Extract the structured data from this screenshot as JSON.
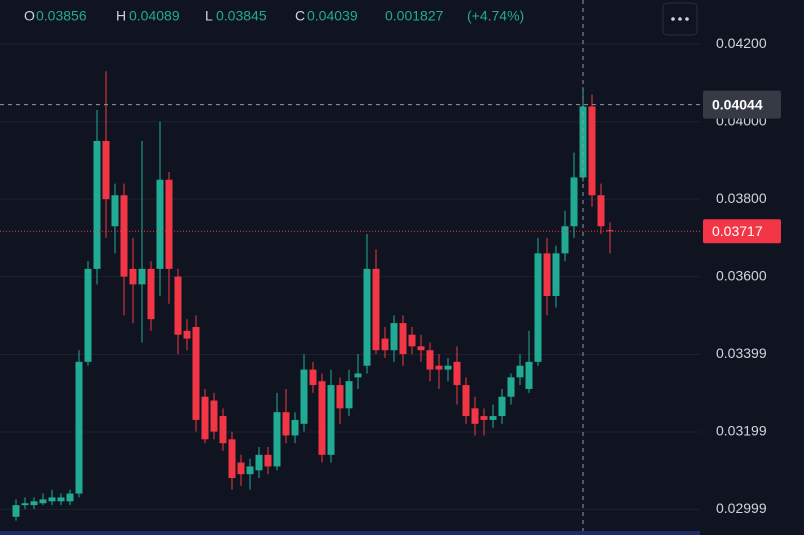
{
  "chart_data": {
    "type": "candlestick",
    "legend": {
      "open_label": "O",
      "open": 0.03856,
      "high_label": "H",
      "high": 0.04089,
      "low_label": "L",
      "low": 0.03845,
      "close_label": "C",
      "close": 0.04039,
      "change": 0.001827,
      "change_label": "(+4.74%)"
    },
    "up_color": "#22ab94",
    "down_color": "#f23645",
    "open": [
      0.0298,
      0.0301,
      0.0301,
      0.03015,
      0.0302,
      0.0302,
      0.0302,
      0.0304,
      0.0338,
      0.0362,
      0.0395,
      0.0373,
      0.0381,
      0.0362,
      0.0358,
      0.0362,
      0.0362,
      0.0385,
      0.036,
      0.0346,
      0.0347,
      0.0329,
      0.0328,
      0.0324,
      0.0318,
      0.0312,
      0.0309,
      0.031,
      0.0314,
      0.0311,
      0.0325,
      0.0319,
      0.0322,
      0.0336,
      0.0333,
      0.0314,
      0.0332,
      0.0326,
      0.0334,
      0.0337,
      0.0362,
      0.0344,
      0.0341,
      0.0348,
      0.0345,
      0.0342,
      0.0341,
      0.0337,
      0.0336,
      0.0338,
      0.0332,
      0.0326,
      0.0324,
      0.0323,
      0.0324,
      0.0329,
      0.0334,
      0.0331,
      0.0338,
      0.0366,
      0.0355,
      0.0366,
      0.0373,
      0.03856,
      0.04039,
      0.0381,
      0.0372
    ],
    "high": [
      0.03025,
      0.0303,
      0.0303,
      0.0304,
      0.0305,
      0.0304,
      0.0305,
      0.0341,
      0.0364,
      0.0403,
      0.0413,
      0.0384,
      0.0384,
      0.037,
      0.0395,
      0.0364,
      0.04,
      0.0387,
      0.0362,
      0.0349,
      0.035,
      0.0331,
      0.033,
      0.0326,
      0.032,
      0.0314,
      0.0313,
      0.0316,
      0.0316,
      0.033,
      0.0331,
      0.0325,
      0.034,
      0.0338,
      0.0335,
      0.0336,
      0.0334,
      0.0336,
      0.034,
      0.0371,
      0.0367,
      0.0347,
      0.035,
      0.035,
      0.0347,
      0.0345,
      0.0343,
      0.034,
      0.0339,
      0.0342,
      0.0334,
      0.0329,
      0.0326,
      0.0327,
      0.0331,
      0.0335,
      0.034,
      0.0346,
      0.037,
      0.037,
      0.0368,
      0.0377,
      0.0392,
      0.04089,
      0.0407,
      0.0384,
      0.0374
    ],
    "low": [
      0.0297,
      0.03,
      0.03,
      0.0301,
      0.0301,
      0.0301,
      0.0301,
      0.0303,
      0.0337,
      0.0358,
      0.037,
      0.0366,
      0.035,
      0.0348,
      0.0343,
      0.0346,
      0.0355,
      0.0353,
      0.034,
      0.0341,
      0.032,
      0.0317,
      0.0318,
      0.0315,
      0.0305,
      0.0306,
      0.0305,
      0.0308,
      0.0309,
      0.031,
      0.0317,
      0.0317,
      0.032,
      0.033,
      0.0312,
      0.0312,
      0.0322,
      0.0324,
      0.0331,
      0.0335,
      0.034,
      0.0339,
      0.0338,
      0.0337,
      0.034,
      0.0338,
      0.0333,
      0.0331,
      0.0333,
      0.0327,
      0.0322,
      0.0319,
      0.0319,
      0.0321,
      0.0322,
      0.0327,
      0.0332,
      0.033,
      0.0337,
      0.035,
      0.0352,
      0.0364,
      0.037,
      0.03845,
      0.0378,
      0.0371,
      0.0366
    ],
    "close": [
      0.0301,
      0.03015,
      0.0302,
      0.03025,
      0.0303,
      0.0303,
      0.0304,
      0.0338,
      0.0362,
      0.0395,
      0.038,
      0.0381,
      0.036,
      0.0358,
      0.0362,
      0.0349,
      0.0385,
      0.0362,
      0.0345,
      0.0344,
      0.0323,
      0.0318,
      0.032,
      0.0317,
      0.0308,
      0.0309,
      0.0311,
      0.0314,
      0.0311,
      0.0325,
      0.0319,
      0.0323,
      0.0336,
      0.0332,
      0.0314,
      0.0332,
      0.0326,
      0.0333,
      0.0335,
      0.0362,
      0.0341,
      0.0341,
      0.0348,
      0.034,
      0.0342,
      0.0341,
      0.0336,
      0.0336,
      0.0337,
      0.0332,
      0.0324,
      0.0322,
      0.0323,
      0.0324,
      0.0329,
      0.0334,
      0.0337,
      0.0338,
      0.0366,
      0.0355,
      0.0366,
      0.0373,
      0.03856,
      0.04039,
      0.0381,
      0.0373,
      0.03717
    ],
    "ylim": [
      0.02933,
      0.04314
    ],
    "yticks": [
      {
        "value": 0.042,
        "label": "0.04200"
      },
      {
        "value": 0.04,
        "label": "0.04000"
      },
      {
        "value": 0.038,
        "label": "0.03800"
      },
      {
        "value": 0.036,
        "label": "0.03600"
      },
      {
        "value": 0.03399,
        "label": "0.03399"
      },
      {
        "value": 0.03199,
        "label": "0.03199"
      },
      {
        "value": 0.02999,
        "label": "0.02999"
      }
    ],
    "grid": true,
    "crosshair_price": 0.04044,
    "last_price": 0.03717
  }
}
